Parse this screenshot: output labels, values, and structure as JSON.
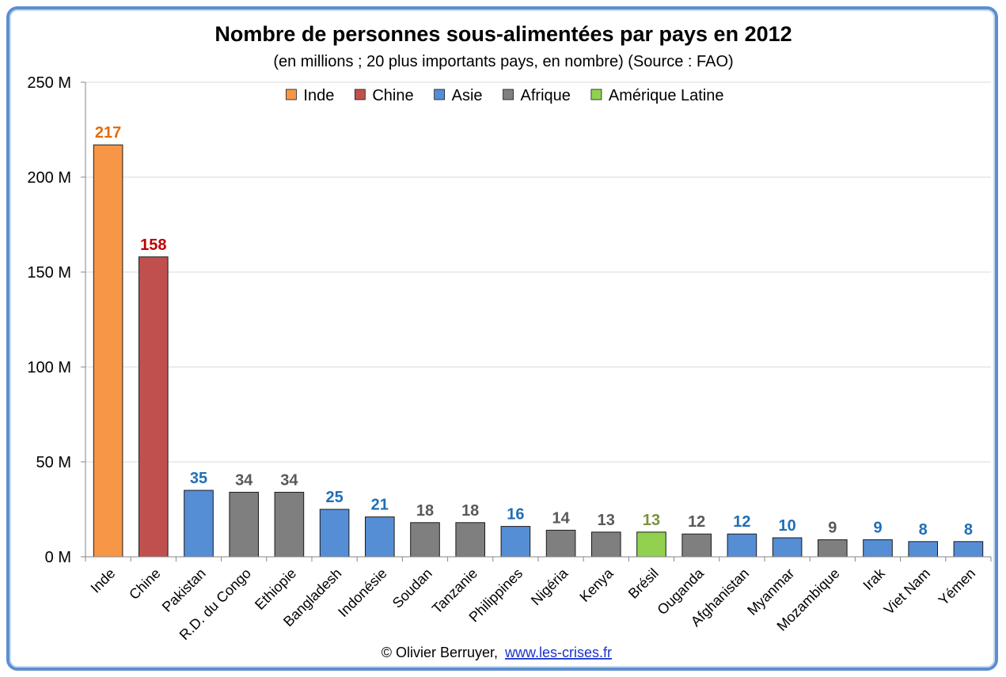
{
  "chart_data": {
    "type": "bar",
    "title": "Nombre de personnes sous-alimentées par pays en 2012",
    "subtitle": "(en millions ; 20 plus importants pays, en nombre) (Source : FAO)",
    "xlabel": "",
    "ylabel": "",
    "ylim": [
      0,
      250
    ],
    "yticks": [
      "0 M",
      "50 M",
      "100 M",
      "150 M",
      "200 M",
      "250 M"
    ],
    "ytick_values": [
      0,
      50,
      100,
      150,
      200,
      250
    ],
    "grid": true,
    "legend_position": "top",
    "legend": [
      {
        "name": "Inde",
        "group": "inde"
      },
      {
        "name": "Chine",
        "group": "chine"
      },
      {
        "name": "Asie",
        "group": "asie"
      },
      {
        "name": "Afrique",
        "group": "afrique"
      },
      {
        "name": "Amérique Latine",
        "group": "amlat"
      }
    ],
    "group_colors": {
      "inde": "#f79646",
      "chine": "#c0504d",
      "asie": "#558ed5",
      "afrique": "#7f7f7f",
      "amlat": "#92d050"
    },
    "label_colors": {
      "inde": "#e46c0a",
      "chine": "#c00000",
      "asie": "#1f6fb5",
      "afrique": "#595959",
      "amlat": "#77933c"
    },
    "categories": [
      "Inde",
      "Chine",
      "Pakistan",
      "R.D. du Congo",
      "Ethiopie",
      "Bangladesh",
      "Indonésie",
      "Soudan",
      "Tanzanie",
      "Philippines",
      "Nigéria",
      "Kenya",
      "Brésil",
      "Ouganda",
      "Afghanistan",
      "Myanmar",
      "Mozambique",
      "Irak",
      "Viet Nam",
      "Yémen"
    ],
    "values": [
      217,
      158,
      35,
      34,
      34,
      25,
      21,
      18,
      18,
      16,
      14,
      13,
      13,
      12,
      12,
      10,
      9,
      9,
      8,
      8
    ],
    "groups": [
      "inde",
      "chine",
      "asie",
      "afrique",
      "afrique",
      "asie",
      "asie",
      "afrique",
      "afrique",
      "asie",
      "afrique",
      "afrique",
      "amlat",
      "afrique",
      "asie",
      "asie",
      "afrique",
      "asie",
      "asie",
      "asie"
    ]
  },
  "footer": {
    "credit": "© Olivier Berruyer,",
    "link": "www.les-crises.fr"
  }
}
